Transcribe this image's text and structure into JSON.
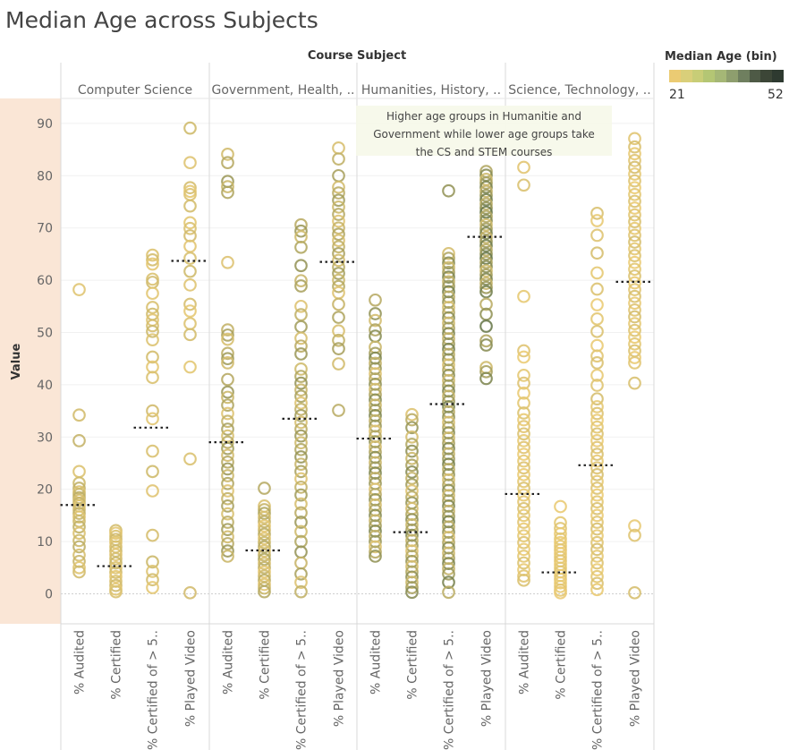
{
  "title": "Median Age across Subjects",
  "annotation_lines": [
    "Higher age groups in Humanitie and",
    "Government while lower age groups take",
    "the CS and STEM courses"
  ],
  "legend": {
    "title": "Median Age (bin)",
    "min_label": "21",
    "max_label": "52",
    "colors": [
      "#ebcb73",
      "#d9cf7a",
      "#c8cd77",
      "#b4c674",
      "#a5b776",
      "#8e9e6e",
      "#6f7f5f",
      "#4e5a46",
      "#3c4637",
      "#2e3a30"
    ]
  },
  "colors": {
    "young": "#ebcb73",
    "old": "#5f7248",
    "median_line": "#222222",
    "y_band": "#fae6d6"
  },
  "chart_data": {
    "type": "scatter",
    "column_header_title": "Course Subject",
    "ylabel": "Value",
    "ylim": [
      -6,
      96
    ],
    "y_ticks": [
      0,
      10,
      20,
      30,
      40,
      50,
      60,
      70,
      80,
      90
    ],
    "measures": [
      "% Audited",
      "% Certified",
      "% Certified of > 5..",
      "% Played Video"
    ],
    "subjects": [
      {
        "name": "Computer Science",
        "groups": [
          {
            "measure": "% Audited",
            "median": 17,
            "age": [
              0.08,
              0.32
            ],
            "values": [
              58.2,
              34.2,
              29.3,
              23.4,
              21.2,
              20.2,
              19.5,
              19.0,
              18.4,
              17.9,
              17.3,
              16.8,
              16.1,
              15.4,
              14.7,
              13.9,
              12.8,
              11.6,
              10.2,
              9.0,
              7.4,
              6.2,
              5.0,
              4.2
            ]
          },
          {
            "measure": "% Certified",
            "median": 5.3,
            "age": [
              0.05,
              0.22
            ],
            "values": [
              12.1,
              11.6,
              11.0,
              10.4,
              9.8,
              9.0,
              8.2,
              7.5,
              6.7,
              5.9,
              5.0,
              4.1,
              3.3,
              2.4,
              1.6,
              0.9,
              0.4
            ]
          },
          {
            "measure": "% Certified of > 5..",
            "median": 31.8,
            "age": [
              0.05,
              0.22
            ],
            "values": [
              64.8,
              63.9,
              63.1,
              60.2,
              59.6,
              57.5,
              54.8,
              53.5,
              52.4,
              51.3,
              50.2,
              48.6,
              45.3,
              43.4,
              41.4,
              35.0,
              33.5,
              27.3,
              23.4,
              19.7,
              11.2,
              6.1,
              4.3,
              2.7,
              1.2
            ]
          },
          {
            "measure": "% Played Video",
            "median": 63.7,
            "age": [
              0.04,
              0.2
            ],
            "values": [
              89.1,
              82.5,
              77.7,
              77.0,
              76.4,
              74.2,
              71.0,
              69.9,
              68.5,
              66.5,
              64.2,
              61.7,
              59.1,
              55.4,
              54.1,
              51.7,
              49.6,
              43.4,
              25.8,
              0.2
            ]
          }
        ]
      },
      {
        "name": "Government, Health, ..",
        "groups": [
          {
            "measure": "% Audited",
            "median": 29,
            "age": [
              0.1,
              0.55
            ],
            "values": [
              84.1,
              82.5,
              78.9,
              77.9,
              76.8,
              63.4,
              50.5,
              49.5,
              48.7,
              46.0,
              45.0,
              44.2,
              41.0,
              38.6,
              37.6,
              36.1,
              34.5,
              33.0,
              31.5,
              30.2,
              29.0,
              27.8,
              26.5,
              25.2,
              23.9,
              22.6,
              21.1,
              19.7,
              18.2,
              16.8,
              15.3,
              13.7,
              12.3,
              10.9,
              9.6,
              8.2,
              7.2
            ]
          },
          {
            "measure": "% Certified",
            "median": 8.3,
            "age": [
              0.05,
              0.4
            ],
            "values": [
              20.2,
              16.8,
              16.1,
              15.4,
              14.6,
              13.8,
              13.0,
              12.2,
              11.4,
              10.6,
              9.8,
              9.0,
              8.2,
              7.4,
              6.6,
              5.8,
              5.0,
              4.2,
              3.4,
              2.6,
              1.8,
              1.1,
              0.4
            ]
          },
          {
            "measure": "% Certified of > 5..",
            "median": 33.5,
            "age": [
              0.1,
              0.6
            ],
            "values": [
              70.6,
              69.4,
              68.3,
              66.3,
              62.8,
              59.9,
              58.9,
              55.0,
              53.4,
              51.1,
              48.9,
              47.4,
              45.9,
              43.0,
              41.6,
              40.3,
              39.0,
              37.8,
              36.5,
              35.3,
              34.1,
              32.8,
              31.5,
              30.2,
              28.9,
              27.6,
              26.2,
              24.8,
              23.4,
              22.0,
              20.4,
              18.9,
              17.2,
              15.5,
              13.7,
              11.9,
              10.0,
              8.0,
              5.9,
              3.8,
              2.2,
              0.4
            ]
          },
          {
            "measure": "% Played Video",
            "median": 63.5,
            "age": [
              0.1,
              0.5
            ],
            "values": [
              85.3,
              83.2,
              80.0,
              77.8,
              76.7,
              75.3,
              74.0,
              72.6,
              71.3,
              70.0,
              68.8,
              67.6,
              66.4,
              65.1,
              63.8,
              62.5,
              61.3,
              60.0,
              58.8,
              57.6,
              55.4,
              52.9,
              50.3,
              48.5,
              46.9,
              44.0,
              35.1
            ]
          }
        ]
      },
      {
        "name": "Humanities, History, ..",
        "groups": [
          {
            "measure": "% Audited",
            "median": 29.7,
            "age": [
              0.1,
              0.75
            ],
            "values": [
              56.2,
              53.6,
              52.3,
              50.5,
              49.3,
              47.2,
              46.0,
              45.1,
              44.1,
              43.1,
              42.1,
              41.1,
              40.1,
              39.1,
              38.1,
              37.1,
              36.1,
              35.1,
              34.1,
              33.1,
              32.1,
              31.1,
              30.1,
              29.1,
              28.1,
              27.1,
              26.1,
              25.1,
              24.1,
              23.1,
              22.1,
              21.1,
              20.0,
              19.0,
              18.0,
              17.0,
              16.0,
              15.0,
              14.0,
              13.0,
              12.0,
              11.0,
              10.0,
              9.0,
              8.0,
              7.2
            ]
          },
          {
            "measure": "% Certified",
            "median": 11.8,
            "age": [
              0.1,
              0.7
            ],
            "values": [
              34.3,
              33.3,
              31.8,
              30.0,
              28.6,
              27.3,
              25.9,
              24.6,
              23.3,
              22.1,
              20.9,
              19.7,
              18.5,
              17.4,
              16.3,
              15.2,
              14.2,
              13.2,
              12.2,
              11.2,
              10.2,
              9.2,
              8.2,
              7.2,
              6.2,
              5.2,
              4.2,
              3.2,
              2.2,
              1.2,
              0.3
            ]
          },
          {
            "measure": "% Certified of > 5..",
            "median": 36.3,
            "age": [
              0.15,
              0.8
            ],
            "values": [
              77.1,
              65.1,
              64.2,
              63.3,
              62.4,
              61.5,
              60.6,
              59.7,
              58.8,
              57.8,
              56.8,
              55.8,
              54.8,
              53.8,
              52.8,
              51.8,
              50.8,
              49.8,
              48.8,
              47.8,
              46.8,
              45.8,
              44.8,
              43.8,
              42.8,
              41.8,
              40.8,
              39.8,
              38.8,
              37.8,
              36.8,
              35.8,
              34.8,
              33.8,
              32.8,
              31.8,
              30.8,
              29.8,
              28.8,
              27.8,
              26.8,
              25.8,
              24.8,
              23.8,
              22.8,
              21.8,
              20.8,
              19.8,
              18.8,
              17.8,
              16.8,
              15.8,
              14.8,
              13.8,
              12.8,
              11.8,
              10.8,
              9.8,
              8.8,
              7.8,
              6.8,
              5.8,
              4.8,
              3.8,
              2.2,
              0.3
            ]
          },
          {
            "measure": "% Played Video",
            "median": 68.3,
            "age": [
              0.2,
              0.9
            ],
            "values": [
              80.8,
              80.1,
              79.3,
              78.6,
              77.8,
              77.0,
              76.2,
              75.4,
              74.6,
              73.8,
              73.0,
              72.2,
              71.4,
              70.6,
              69.8,
              69.0,
              68.2,
              67.4,
              66.6,
              65.8,
              65.0,
              64.2,
              63.4,
              62.6,
              61.8,
              61.0,
              60.2,
              59.4,
              58.6,
              57.8,
              55.4,
              53.5,
              51.2,
              48.4,
              47.6,
              43.3,
              42.5,
              41.2
            ]
          }
        ]
      },
      {
        "name": "Science, Technology, ..",
        "groups": [
          {
            "measure": "% Audited",
            "median": 19.1,
            "age": [
              0.0,
              0.12
            ],
            "values": [
              81.6,
              78.2,
              56.9,
              46.5,
              45.3,
              41.8,
              40.3,
              38.4,
              36.5,
              34.6,
              33.3,
              32.0,
              30.6,
              29.3,
              28.0,
              26.7,
              25.4,
              24.1,
              22.8,
              21.5,
              20.2,
              18.9,
              17.6,
              16.3,
              15.0,
              13.7,
              12.4,
              11.1,
              9.8,
              8.5,
              7.2,
              5.9,
              4.6,
              3.4,
              2.6
            ]
          },
          {
            "measure": "% Certified",
            "median": 4.1,
            "age": [
              0.0,
              0.08
            ],
            "values": [
              16.7,
              13.6,
              12.5,
              11.5,
              10.5,
              9.8,
              9.1,
              8.4,
              7.7,
              7.0,
              6.3,
              5.6,
              4.9,
              4.2,
              3.5,
              2.8,
              2.1,
              1.4,
              0.7,
              0.2
            ]
          },
          {
            "measure": "% Certified of > 5..",
            "median": 24.6,
            "age": [
              0.0,
              0.15
            ],
            "values": [
              72.8,
              71.4,
              68.6,
              65.2,
              61.4,
              58.3,
              55.3,
              52.6,
              50.2,
              47.5,
              45.5,
              44.2,
              41.8,
              39.9,
              37.3,
              35.8,
              34.5,
              33.2,
              31.9,
              30.6,
              29.3,
              28.0,
              26.7,
              25.4,
              24.1,
              22.8,
              21.5,
              20.2,
              18.9,
              17.6,
              16.3,
              15.0,
              13.7,
              12.4,
              11.1,
              9.8,
              8.5,
              7.2,
              5.9,
              4.6,
              3.3,
              2.0,
              0.8
            ]
          },
          {
            "measure": "% Played Video",
            "median": 59.7,
            "age": [
              0.0,
              0.15
            ],
            "values": [
              87.1,
              85.5,
              84.2,
              82.9,
              81.6,
              80.3,
              79.0,
              77.7,
              76.4,
              75.1,
              73.8,
              72.5,
              71.2,
              69.9,
              68.6,
              67.3,
              66.0,
              64.7,
              63.4,
              62.1,
              60.8,
              59.5,
              58.2,
              56.9,
              55.6,
              54.3,
              53.0,
              51.7,
              50.4,
              49.1,
              47.8,
              46.5,
              45.2,
              44.2,
              40.3,
              13.0,
              11.2,
              0.2
            ]
          }
        ]
      }
    ]
  }
}
